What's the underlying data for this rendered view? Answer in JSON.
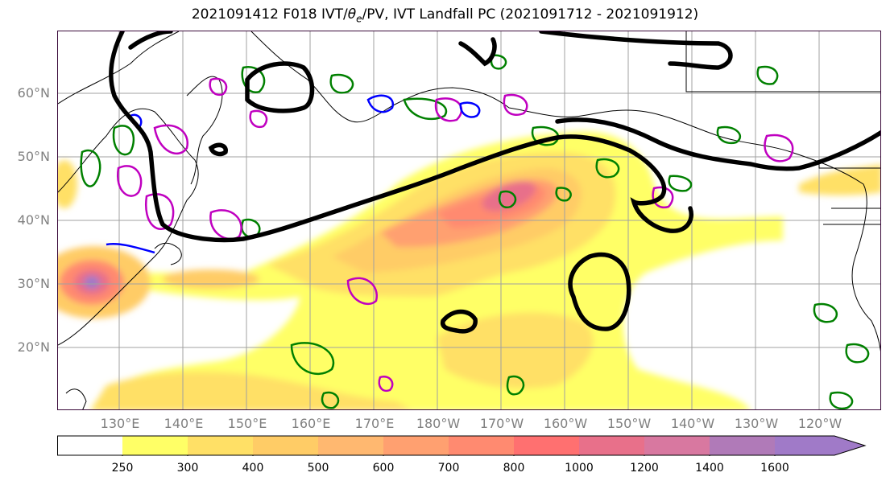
{
  "title": "2021091412 F018 IVT/θe/PV, IVT Landfall PC (2021091712 - 2021091912)",
  "title_parts": {
    "pre": "2021091412 F018 IVT/",
    "theta": "θ",
    "sub": "e",
    "post": "/PV, IVT Landfall PC (2021091712 - 2021091912)"
  },
  "lat_labels": [
    "60°N",
    "50°N",
    "40°N",
    "30°N",
    "20°N"
  ],
  "lon_labels": [
    "130°E",
    "140°E",
    "150°E",
    "160°E",
    "170°E",
    "180°W",
    "170°W",
    "160°W",
    "150°W",
    "140°W",
    "130°W",
    "120°W"
  ],
  "colorbar": {
    "ticks": [
      "250",
      "300",
      "400",
      "500",
      "600",
      "700",
      "800",
      "1000",
      "1200",
      "1400",
      "1600"
    ],
    "colors": [
      "#ffffff",
      "#ffff66",
      "#ffe066",
      "#ffcc66",
      "#ffb870",
      "#ffa070",
      "#ff8a70",
      "#ff7070",
      "#e8708a",
      "#d878a0",
      "#b07ab8",
      "#a07ac8"
    ]
  },
  "colors": {
    "frame": "#3a0a3a",
    "grid": "#a0a0a0",
    "theta_e": "#000000",
    "pv_green": "#008000",
    "pv_magenta": "#c000c0",
    "pv_blue": "#0000ff",
    "axis_text": "#808080"
  },
  "chart_data": {
    "type": "heatmap",
    "variable": "IVT",
    "x_range_deg_east": [
      120,
      250
    ],
    "y_range_deg_north": [
      10,
      70
    ],
    "levels": [
      250,
      300,
      400,
      500,
      600,
      700,
      800,
      1000,
      1200,
      1400,
      1600
    ],
    "features": [
      {
        "name": "typhoon_core",
        "lon": 125,
        "lat": 30,
        "max_ivt": 1500
      },
      {
        "name": "central_pacific_plume",
        "lon": 188,
        "lat": 43,
        "max_ivt": 1000
      },
      {
        "name": "subtropical_band",
        "lon": 150,
        "lat": 31,
        "max_ivt": 600
      }
    ],
    "grid": true
  }
}
